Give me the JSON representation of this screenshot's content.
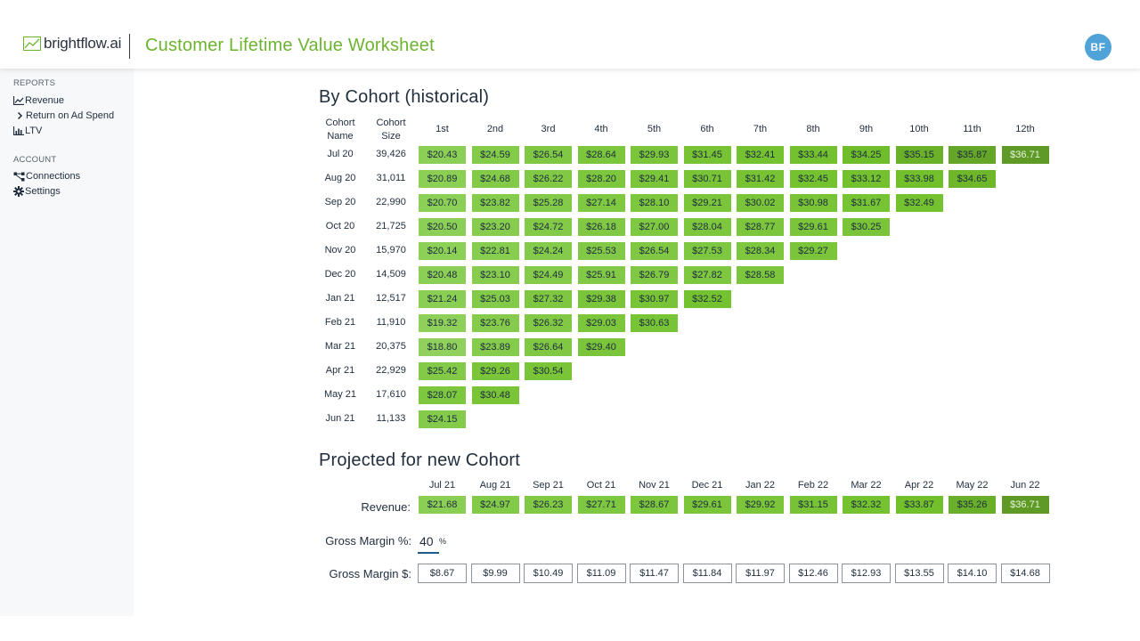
{
  "header": {
    "logo_text": "brightflow.ai",
    "title": "Customer Lifetime Value Worksheet",
    "avatar_initials": "BF"
  },
  "sidebar": {
    "sections": [
      {
        "title": "REPORTS",
        "items": [
          {
            "label": "Revenue",
            "icon": "line-chart-icon"
          },
          {
            "label": "Return on Ad Spend",
            "icon": "chevron-right-icon"
          },
          {
            "label": "LTV",
            "icon": "bar-chart-icon"
          }
        ]
      },
      {
        "title": "ACCOUNT",
        "items": [
          {
            "label": "Connections",
            "icon": "connections-icon"
          },
          {
            "label": "Settings",
            "icon": "gear-icon"
          }
        ]
      }
    ]
  },
  "cohort": {
    "title": "By Cohort (historical)",
    "name_header": [
      "Cohort",
      "Name"
    ],
    "size_header": [
      "Cohort",
      "Size"
    ],
    "month_headers": [
      "1st",
      "2nd",
      "3rd",
      "4th",
      "5th",
      "6th",
      "7th",
      "8th",
      "9th",
      "10th",
      "11th",
      "12th"
    ],
    "rows": [
      {
        "name": "Jul 20",
        "size": "39,426",
        "values": [
          "$20.43",
          "$24.59",
          "$26.54",
          "$28.64",
          "$29.93",
          "$31.45",
          "$32.41",
          "$33.44",
          "$34.25",
          "$35.15",
          "$35.87",
          "$36.71"
        ]
      },
      {
        "name": "Aug 20",
        "size": "31,011",
        "values": [
          "$20.89",
          "$24.68",
          "$26.22",
          "$28.20",
          "$29.41",
          "$30.71",
          "$31.42",
          "$32.45",
          "$33.12",
          "$33.98",
          "$34.65"
        ]
      },
      {
        "name": "Sep 20",
        "size": "22,990",
        "values": [
          "$20.70",
          "$23.82",
          "$25.28",
          "$27.14",
          "$28.10",
          "$29.21",
          "$30.02",
          "$30.98",
          "$31.67",
          "$32.49"
        ]
      },
      {
        "name": "Oct 20",
        "size": "21,725",
        "values": [
          "$20.50",
          "$23.20",
          "$24.72",
          "$26.18",
          "$27.00",
          "$28.04",
          "$28.77",
          "$29.61",
          "$30.25"
        ]
      },
      {
        "name": "Nov 20",
        "size": "15,970",
        "values": [
          "$20.14",
          "$22.81",
          "$24.24",
          "$25.53",
          "$26.54",
          "$27.53",
          "$28.34",
          "$29.27"
        ]
      },
      {
        "name": "Dec 20",
        "size": "14,509",
        "values": [
          "$20.48",
          "$23.10",
          "$24.49",
          "$25.91",
          "$26.79",
          "$27.82",
          "$28.58"
        ]
      },
      {
        "name": "Jan 21",
        "size": "12,517",
        "values": [
          "$21.24",
          "$25.03",
          "$27.32",
          "$29.38",
          "$30.97",
          "$32.52"
        ]
      },
      {
        "name": "Feb 21",
        "size": "11,910",
        "values": [
          "$19.32",
          "$23.76",
          "$26.32",
          "$29.03",
          "$30.63"
        ]
      },
      {
        "name": "Mar 21",
        "size": "20,375",
        "values": [
          "$18.80",
          "$23.89",
          "$26.64",
          "$29.40"
        ]
      },
      {
        "name": "Apr 21",
        "size": "22,929",
        "values": [
          "$25.42",
          "$29.26",
          "$30.54"
        ]
      },
      {
        "name": "May 21",
        "size": "17,610",
        "values": [
          "$28.07",
          "$30.48"
        ]
      },
      {
        "name": "Jun 21",
        "size": "11,133",
        "values": [
          "$24.15"
        ]
      }
    ]
  },
  "projected": {
    "title": "Projected for new Cohort",
    "months": [
      "Jul 21",
      "Aug 21",
      "Sep 21",
      "Oct 21",
      "Nov 21",
      "Dec 21",
      "Jan 22",
      "Feb 22",
      "Mar 22",
      "Apr 22",
      "May 22",
      "Jun 22"
    ],
    "revenue_label": "Revenue:",
    "revenue": [
      "$21.68",
      "$24.97",
      "$26.23",
      "$27.71",
      "$28.67",
      "$29.61",
      "$29.92",
      "$31.15",
      "$32.32",
      "$33.87",
      "$35.26",
      "$36.71"
    ],
    "gm_pct_label": "Gross Margin %:",
    "gm_pct_value": "40",
    "gm_pct_unit": "%",
    "gm_dollar_label": "Gross Margin $:",
    "gm_dollar": [
      "$8.67",
      "$9.99",
      "$10.49",
      "$11.09",
      "$11.47",
      "$11.84",
      "$11.97",
      "$12.46",
      "$12.93",
      "$13.55",
      "$14.10",
      "$14.68"
    ]
  },
  "heat_scale": {
    "min": 18.8,
    "max": 36.71,
    "light": "#8fd15c",
    "mid": "#72c02c",
    "dark": "#5f9a26"
  }
}
